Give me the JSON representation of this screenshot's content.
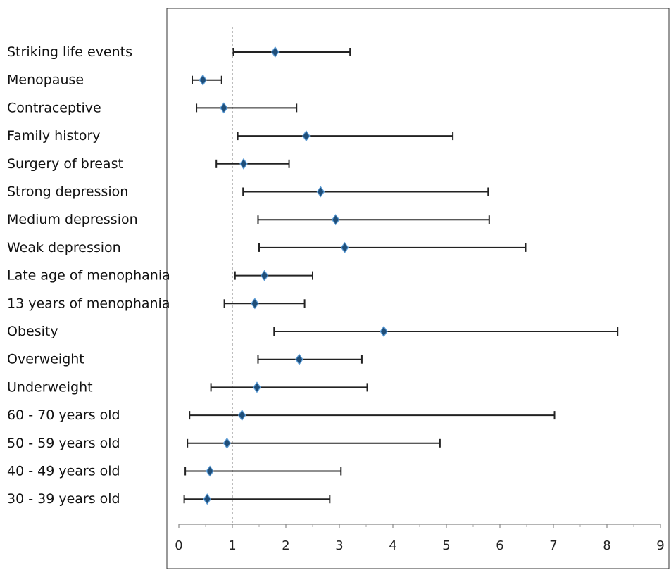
{
  "chart_data": {
    "type": "scatter",
    "subtype": "forest-plot-with-confidence-intervals",
    "title": "",
    "xlabel": "",
    "ylabel": "",
    "xlim": [
      0,
      9
    ],
    "x_ticks": [
      "0",
      "1",
      "2",
      "3",
      "4",
      "5",
      "6",
      "7",
      "8",
      "9"
    ],
    "reference_line": {
      "x": 1,
      "style": "dashed"
    },
    "grid": false,
    "legend": "none",
    "colors": {
      "marker": "#1f4e79",
      "marker_edge": "#5b9bd5",
      "whisker": "#222222",
      "reference": "#999999"
    },
    "rows": [
      {
        "label": "Striking life events",
        "estimate": 1.8,
        "lower": 1.02,
        "upper": 3.2
      },
      {
        "label": "Menopause",
        "estimate": 0.45,
        "lower": 0.25,
        "upper": 0.8
      },
      {
        "label": "Contraceptive",
        "estimate": 0.84,
        "lower": 0.33,
        "upper": 2.2
      },
      {
        "label": "Family history",
        "estimate": 2.38,
        "lower": 1.1,
        "upper": 5.12
      },
      {
        "label": "Surgery of breast",
        "estimate": 1.21,
        "lower": 0.7,
        "upper": 2.06
      },
      {
        "label": "Strong depression",
        "estimate": 2.65,
        "lower": 1.2,
        "upper": 5.78
      },
      {
        "label": "Medium depression",
        "estimate": 2.93,
        "lower": 1.48,
        "upper": 5.8
      },
      {
        "label": "Weak depression",
        "estimate": 3.1,
        "lower": 1.5,
        "upper": 6.48
      },
      {
        "label": "Late age of menophania",
        "estimate": 1.6,
        "lower": 1.05,
        "upper": 2.5
      },
      {
        "label": "13 years of menophania",
        "estimate": 1.42,
        "lower": 0.85,
        "upper": 2.35
      },
      {
        "label": "Obesity",
        "estimate": 3.83,
        "lower": 1.78,
        "upper": 8.2
      },
      {
        "label": "Overweight",
        "estimate": 2.25,
        "lower": 1.48,
        "upper": 3.42
      },
      {
        "label": "Underweight",
        "estimate": 1.46,
        "lower": 0.6,
        "upper": 3.52
      },
      {
        "label": "60 - 70 years old",
        "estimate": 1.18,
        "lower": 0.2,
        "upper": 7.02
      },
      {
        "label": "50 - 59 years old",
        "estimate": 0.9,
        "lower": 0.16,
        "upper": 4.88
      },
      {
        "label": "40 - 49 years old",
        "estimate": 0.58,
        "lower": 0.12,
        "upper": 3.03
      },
      {
        "label": "30 - 39 years old",
        "estimate": 0.53,
        "lower": 0.1,
        "upper": 2.82
      }
    ]
  }
}
